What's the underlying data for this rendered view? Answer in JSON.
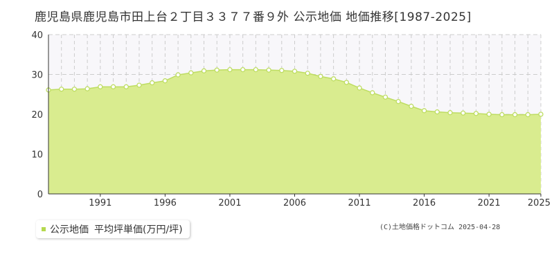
{
  "title": "鹿児島県鹿児島市田上台２丁目３３７７番９外 公示地価 地価推移[1987-2025]",
  "legend": {
    "label_1": "公示地価",
    "label_2": "平均坪単価(万円/坪)"
  },
  "copyright": "(C)土地価格ドットコム 2025-04-28",
  "colors": {
    "fill": "#d9ec8f",
    "line": "#bedd62",
    "marker_fill": "#ffffff",
    "grid": "#cccccc",
    "plot_bg": "#f8f7fa"
  },
  "chart_data": {
    "type": "area",
    "x": [
      1987,
      1988,
      1989,
      1990,
      1991,
      1992,
      1993,
      1994,
      1995,
      1996,
      1997,
      1998,
      1999,
      2000,
      2001,
      2002,
      2003,
      2004,
      2005,
      2006,
      2007,
      2008,
      2009,
      2010,
      2011,
      2012,
      2013,
      2014,
      2015,
      2016,
      2017,
      2018,
      2019,
      2020,
      2021,
      2022,
      2023,
      2024,
      2025
    ],
    "series": [
      {
        "name": "平均坪単価(万円/坪)",
        "values": [
          26.1,
          26.3,
          26.3,
          26.4,
          26.9,
          26.9,
          26.9,
          27.3,
          27.9,
          28.4,
          29.9,
          30.4,
          30.9,
          31.1,
          31.2,
          31.2,
          31.2,
          31.1,
          31.0,
          30.8,
          30.3,
          29.5,
          28.9,
          28.0,
          26.6,
          25.4,
          24.3,
          23.2,
          22.0,
          20.9,
          20.6,
          20.4,
          20.3,
          20.2,
          20.0,
          19.9,
          19.9,
          19.9,
          20.0
        ]
      }
    ],
    "xticks": [
      "1991",
      "1996",
      "2001",
      "2006",
      "2011",
      "2016",
      "2021",
      "2025"
    ],
    "xtick_values": [
      1991,
      1996,
      2001,
      2006,
      2011,
      2016,
      2021,
      2025
    ],
    "yticks": [
      "0",
      "10",
      "20",
      "30",
      "40"
    ],
    "ytick_values": [
      0,
      10,
      20,
      30,
      40
    ],
    "xlim": [
      1987,
      2025
    ],
    "ylim": [
      0,
      40
    ],
    "grid": true,
    "legend_position": "bottom-left"
  }
}
